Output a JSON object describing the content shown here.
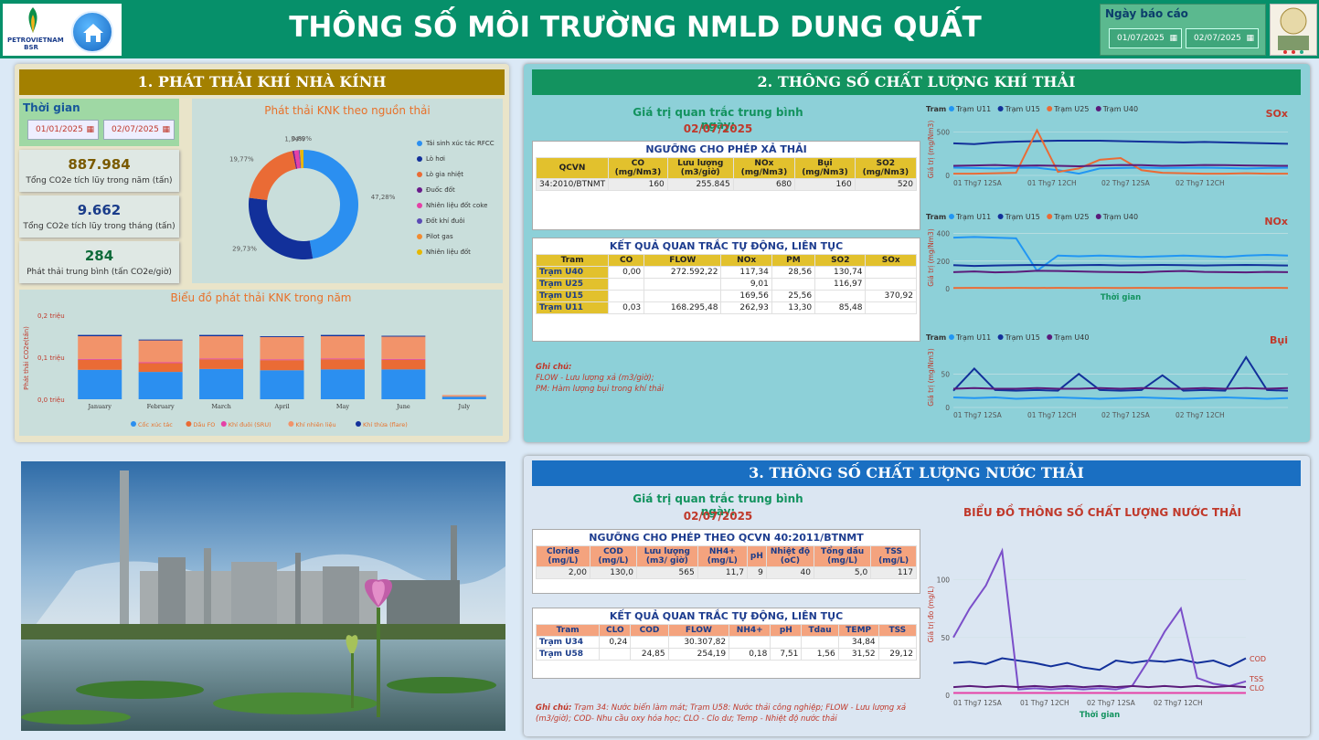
{
  "header": {
    "title": "THÔNG SỐ MÔI TRƯỜNG NMLD DUNG QUẤT",
    "logo_text": "PETROVIETNAM BSR",
    "report_date_label": "Ngày báo cáo",
    "date_from": "01/07/2025",
    "date_to": "02/07/2025"
  },
  "ghg": {
    "title": "1. PHÁT THẢI KHÍ NHÀ KÍNH",
    "time_label": "Thời gian",
    "time_from": "01/01/2025",
    "time_to": "02/07/2025",
    "kpis": [
      {
        "value": "887.984",
        "label": "Tổng CO2e tích lũy trong năm (tấn)",
        "color": "#7a5a00"
      },
      {
        "value": "9.662",
        "label": "Tổng CO2e tích lũy trong tháng (tấn)",
        "color": "#1a3c8a"
      },
      {
        "value": "284",
        "label": "Phát thải trung bình (tấn CO2e/giờ)",
        "color": "#0f6b3a"
      }
    ]
  },
  "chart_data": [
    {
      "type": "pie",
      "title": "Phát thải KNK theo nguồn thải",
      "slices": [
        {
          "name": "Tái sinh xúc tác RFCC",
          "value": 47.28,
          "label": "47,28%",
          "color": "#2b8ff0"
        },
        {
          "name": "Lò hơi",
          "value": 29.73,
          "label": "29,73%",
          "color": "#12309a"
        },
        {
          "name": "Lò gia nhiệt",
          "value": 19.77,
          "label": "19,77%",
          "color": "#ea6b35"
        },
        {
          "name": "Đuốc đốt",
          "value": 0.5,
          "label": "",
          "color": "#6a1b8a"
        },
        {
          "name": "Nhiên liệu đốt coke",
          "value": 1.34,
          "label": "1,34%",
          "color": "#e540a6"
        },
        {
          "name": "Đốt khí đuôi",
          "value": 0.3,
          "label": "",
          "color": "#5b4bb5"
        },
        {
          "name": "Pilot gas",
          "value": 0.2,
          "label": "",
          "color": "#f28b30"
        },
        {
          "name": "Nhiên liệu đốt",
          "value": 0.89,
          "label": "0,89%",
          "color": "#e6b800"
        }
      ]
    },
    {
      "type": "bar",
      "title": "Biểu đồ phát thải KNK trong năm",
      "ylabel": "Phát thải CO2e(tấn)",
      "yticks": [
        "0,0 triệu",
        "0,1 triệu",
        "0,2 triệu"
      ],
      "ylim": [
        0,
        0.2
      ],
      "categories": [
        "January",
        "February",
        "March",
        "April",
        "May",
        "June",
        "July"
      ],
      "series": [
        {
          "name": "Cốc xúc tác",
          "color": "#2b8ff0",
          "values": [
            0.07,
            0.065,
            0.072,
            0.069,
            0.071,
            0.071,
            0.006
          ]
        },
        {
          "name": "Dầu FO",
          "color": "#ea6b35",
          "values": [
            0.024,
            0.021,
            0.023,
            0.024,
            0.024,
            0.023,
            0.001
          ]
        },
        {
          "name": "Khí đuôi (SRU)",
          "color": "#e540a6",
          "values": [
            0.002,
            0.002,
            0.002,
            0.002,
            0.002,
            0.002,
            0.0
          ]
        },
        {
          "name": "Khí nhiên liệu",
          "color": "#f2936a",
          "values": [
            0.054,
            0.052,
            0.053,
            0.053,
            0.053,
            0.053,
            0.003
          ]
        },
        {
          "name": "Khí thừa (flare)",
          "color": "#12309a",
          "values": [
            0.003,
            0.002,
            0.003,
            0.002,
            0.003,
            0.002,
            0.0
          ]
        }
      ]
    },
    {
      "type": "line",
      "title": "SOx",
      "ylabel": "Giá trị (mg/Nm3)",
      "yticks": [
        "0",
        "500"
      ],
      "ylim": [
        0,
        600
      ],
      "xticks": [
        "01 Thg7 12SA",
        "01 Thg7 12CH",
        "02 Thg7 12SA",
        "02 Thg7 12CH"
      ],
      "legend_title": "Tram",
      "series": [
        {
          "name": "Trạm U11",
          "color": "#2196f3",
          "values": [
            90,
            85,
            80,
            90,
            88,
            60,
            20,
            80,
            85,
            90,
            85,
            88,
            90,
            85,
            80,
            85,
            88
          ]
        },
        {
          "name": "Trạm U15",
          "color": "#12309a",
          "values": [
            370,
            360,
            380,
            390,
            395,
            400,
            400,
            400,
            395,
            390,
            385,
            380,
            385,
            380,
            375,
            370,
            365
          ]
        },
        {
          "name": "Trạm U25",
          "color": "#ea6b35",
          "values": [
            20,
            20,
            25,
            30,
            520,
            40,
            80,
            180,
            200,
            60,
            30,
            25,
            20,
            20,
            25,
            20,
            20
          ]
        },
        {
          "name": "Trạm U40",
          "color": "#5b1b7a",
          "values": [
            110,
            115,
            120,
            110,
            115,
            110,
            105,
            115,
            120,
            118,
            110,
            115,
            120,
            118,
            115,
            112,
            110
          ]
        }
      ]
    },
    {
      "type": "line",
      "title": "NOx",
      "ylabel": "Giá trị (mg/Nm3)",
      "xlabel": "Thời gian",
      "yticks": [
        "0",
        "200",
        "400"
      ],
      "ylim": [
        0,
        450
      ],
      "legend_title": "Tram",
      "series": [
        {
          "name": "Trạm U11",
          "color": "#2196f3",
          "values": [
            370,
            375,
            370,
            365,
            130,
            240,
            235,
            240,
            235,
            230,
            235,
            240,
            235,
            230,
            240,
            245,
            240
          ]
        },
        {
          "name": "Trạm U15",
          "color": "#12309a",
          "values": [
            170,
            165,
            168,
            170,
            172,
            168,
            170,
            172,
            168,
            170,
            172,
            170,
            168,
            170,
            172,
            170,
            168
          ]
        },
        {
          "name": "Trạm U25",
          "color": "#ea6b35",
          "values": [
            5,
            6,
            5,
            6,
            5,
            6,
            5,
            6,
            5,
            6,
            5,
            6,
            5,
            6,
            5,
            6,
            5
          ]
        },
        {
          "name": "Trạm U40",
          "color": "#5b1b7a",
          "values": [
            120,
            125,
            118,
            122,
            130,
            128,
            125,
            122,
            120,
            118,
            125,
            128,
            122,
            120,
            118,
            122,
            120
          ]
        }
      ]
    },
    {
      "type": "line",
      "title": "Bụi",
      "ylabel": "Giá trị (mg/Nm3)",
      "yticks": [
        "0",
        "50"
      ],
      "ylim": [
        0,
        90
      ],
      "legend_title": "Tram",
      "series": [
        {
          "name": "Trạm U11",
          "color": "#2196f3",
          "values": [
            15,
            14,
            15,
            13,
            14,
            15,
            14,
            13,
            14,
            15,
            14,
            13,
            14,
            15,
            14,
            13,
            14
          ]
        },
        {
          "name": "Trạm U15",
          "color": "#12309a",
          "values": [
            25,
            58,
            26,
            25,
            26,
            25,
            50,
            26,
            25,
            26,
            48,
            25,
            26,
            25,
            75,
            26,
            25
          ]
        },
        {
          "name": "Trạm U40",
          "color": "#5b1b7a",
          "values": [
            28,
            29,
            28,
            28,
            29,
            28,
            28,
            29,
            28,
            29,
            28,
            28,
            29,
            28,
            29,
            28,
            29
          ]
        }
      ]
    },
    {
      "type": "line",
      "title": "BIỂU ĐỒ THÔNG SỐ CHẤT LƯỢNG NƯỚC THẢI",
      "ylabel": "Giá trị đo (mg/L)",
      "xlabel": "Thời gian",
      "yticks": [
        "0",
        "50",
        "100"
      ],
      "ylim": [
        0,
        140
      ],
      "xticks": [
        "01 Thg7 12SA",
        "01 Thg7 12CH",
        "02 Thg7 12SA",
        "02 Thg7 12CH"
      ],
      "series": [
        {
          "name": "COD",
          "color": "#12309a",
          "values": [
            28,
            29,
            27,
            32,
            30,
            28,
            25,
            28,
            24,
            22,
            30,
            28,
            30,
            29,
            31,
            28,
            30,
            25,
            32
          ]
        },
        {
          "name": "TSS",
          "color": "#7b4fc9",
          "values": [
            50,
            75,
            95,
            125,
            5,
            6,
            5,
            6,
            5,
            6,
            5,
            8,
            30,
            55,
            75,
            15,
            10,
            8,
            12
          ]
        },
        {
          "name": "CLO",
          "color": "#e540a6",
          "values": [
            2,
            2,
            2,
            2,
            2,
            2,
            2,
            2,
            2,
            2,
            2,
            2,
            2,
            2,
            2,
            2,
            2,
            2,
            2
          ]
        },
        {
          "name": "TEMP",
          "color": "#5b1b7a",
          "values": [
            7,
            8,
            7,
            8,
            7,
            8,
            7,
            8,
            7,
            8,
            7,
            8,
            7,
            8,
            7,
            8,
            7,
            8,
            7
          ]
        }
      ]
    }
  ],
  "air": {
    "title": "2. THÔNG SỐ CHẤT LƯỢNG KHÍ THẢI",
    "avg_label": "Giá trị quan trắc trung bình ngày:",
    "avg_date": "02/07/2025",
    "limit_caption": "NGƯỠNG CHO PHÉP XẢ THẢI",
    "limit_headers": [
      "QCVN",
      "CO (mg/Nm3)",
      "Lưu lượng (m3/giờ)",
      "NOx (mg/Nm3)",
      "Bụi (mg/Nm3)",
      "SO2 (mg/Nm3)"
    ],
    "limit_row": [
      "34:2010/BTNMT",
      "160",
      "255.845",
      "680",
      "160",
      "520"
    ],
    "result_caption": "KẾT QUẢ QUAN TRẮC TỰ ĐỘNG, LIÊN TỤC",
    "result_headers": [
      "Tram",
      "CO",
      "FLOW",
      "NOx",
      "PM",
      "SO2",
      "SOx"
    ],
    "result_rows": [
      [
        "Trạm U40",
        "0,00",
        "272.592,22",
        "117,34",
        "28,56",
        "130,74",
        ""
      ],
      [
        "Trạm U25",
        "",
        "",
        "9,01",
        "",
        "116,97",
        ""
      ],
      [
        "Trạm U15",
        "",
        "",
        "169,56",
        "25,56",
        "",
        "370,92"
      ],
      [
        "Trạm U11",
        "0,03",
        "168.295,48",
        "262,93",
        "13,30",
        "85,48",
        ""
      ]
    ],
    "note_title": "Ghi chú:",
    "notes": [
      "FLOW - Lưu lượng xả (m3/giờ);",
      "PM: Hàm lượng bụi trong khí thải"
    ]
  },
  "water": {
    "title": "3. THÔNG SỐ CHẤT LƯỢNG NƯỚC THẢI",
    "avg_label": "Giá trị quan trắc trung bình ngày:",
    "avg_date": "02/07/2025",
    "limit_caption": "NGƯỠNG CHO PHÉP THEO QCVN 40:2011/BTNMT",
    "limit_headers": [
      "Cloride (mg/L)",
      "COD (mg/L)",
      "Lưu lượng (m3/ giờ)",
      "NH4+ (mg/L)",
      "pH",
      "Nhiệt độ (oC)",
      "Tổng dầu (mg/L)",
      "TSS (mg/L)"
    ],
    "limit_row": [
      "2,00",
      "130,0",
      "565",
      "11,7",
      "9",
      "40",
      "5,0",
      "117"
    ],
    "result_caption": "KẾT QUẢ QUAN TRẮC TỰ ĐỘNG, LIÊN TỤC",
    "result_headers": [
      "Tram",
      "CLO",
      "COD",
      "FLOW",
      "NH4+",
      "pH",
      "Tdau",
      "TEMP",
      "TSS"
    ],
    "result_rows": [
      [
        "Trạm U34",
        "0,24",
        "",
        "30.307,82",
        "",
        "",
        "",
        "34,84",
        ""
      ],
      [
        "Trạm U58",
        "",
        "24,85",
        "254,19",
        "0,18",
        "7,51",
        "1,56",
        "31,52",
        "29,12"
      ]
    ],
    "note_title": "Ghi chú:",
    "note_text": "Trạm 34: Nước biển làm mát; Trạm U58: Nước thải công nghiệp; FLOW - Lưu lượng xả (m3/giờ); COD- Nhu cầu oxy hóa học; CLO - Clo dư; Temp - Nhiệt độ nước thải"
  }
}
